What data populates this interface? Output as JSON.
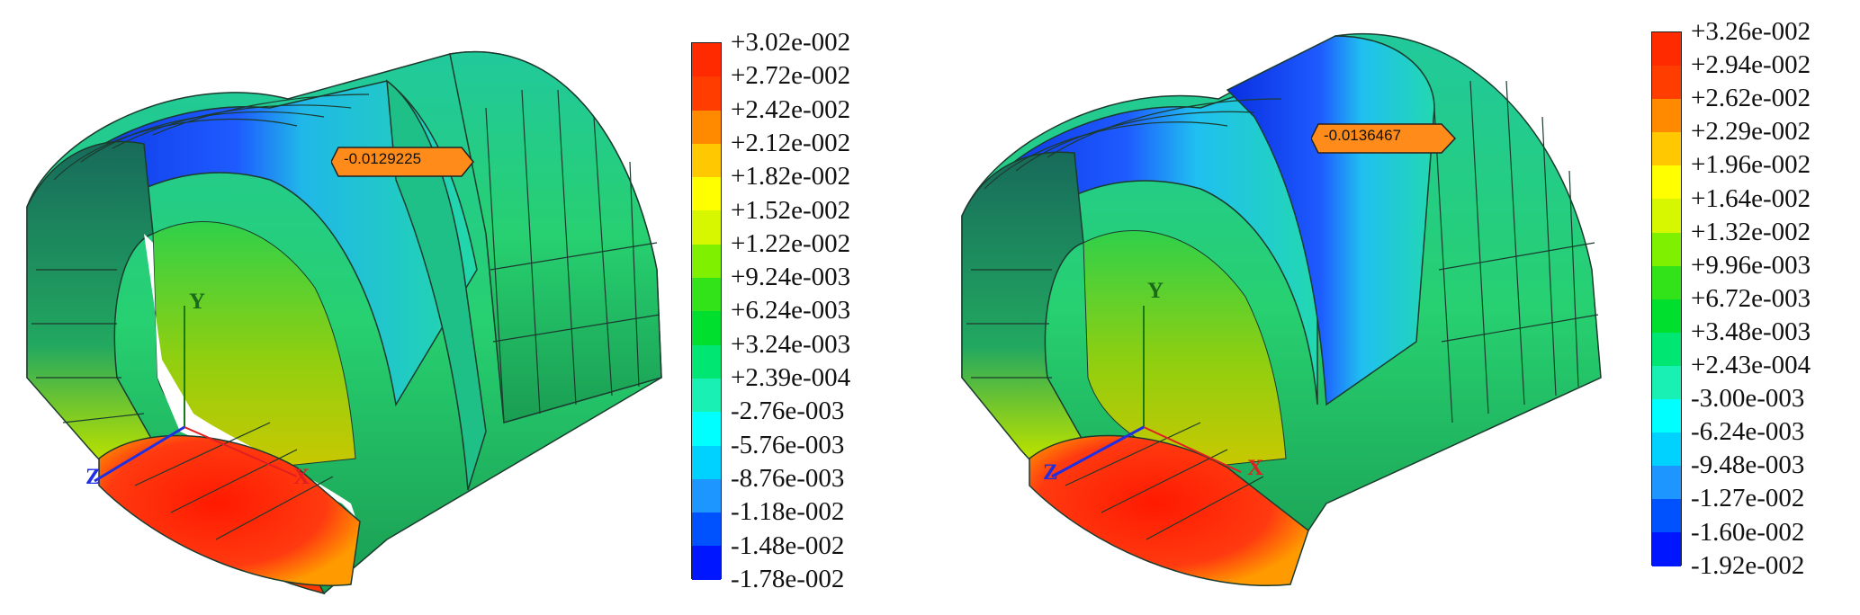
{
  "panels": [
    {
      "id": "left",
      "annotation": "-0.0129225",
      "axis_labels": {
        "y": "Y",
        "x": "X",
        "z": "Z"
      },
      "legend": {
        "labels": [
          "+3.02e-002",
          "+2.72e-002",
          "+2.42e-002",
          "+2.12e-002",
          "+1.82e-002",
          "+1.52e-002",
          "+1.22e-002",
          "+9.24e-003",
          "+6.24e-003",
          "+3.24e-003",
          "+2.39e-004",
          "-2.76e-003",
          "-5.76e-003",
          "-8.76e-003",
          "-1.18e-002",
          "-1.48e-002",
          "-1.78e-002"
        ],
        "colors": [
          "#ff2a00",
          "#ff3d00",
          "#ff8a00",
          "#ffc800",
          "#ffff00",
          "#d6f700",
          "#7ef000",
          "#33e31a",
          "#00df2e",
          "#00e673",
          "#19f0b3",
          "#00ffff",
          "#00d2ff",
          "#1e96ff",
          "#0052ff",
          "#0016ff"
        ]
      }
    },
    {
      "id": "right",
      "annotation": "-0.0136467",
      "axis_labels": {
        "y": "Y",
        "x": "X",
        "z": "Z"
      },
      "legend": {
        "labels": [
          "+3.26e-002",
          "+2.94e-002",
          "+2.62e-002",
          "+2.29e-002",
          "+1.96e-002",
          "+1.64e-002",
          "+1.32e-002",
          "+9.96e-003",
          "+6.72e-003",
          "+3.48e-003",
          "+2.43e-004",
          "-3.00e-003",
          "-6.24e-003",
          "-9.48e-003",
          "-1.27e-002",
          "-1.60e-002",
          "-1.92e-002"
        ],
        "colors": [
          "#ff2a00",
          "#ff3d00",
          "#ff8a00",
          "#ffc800",
          "#ffff00",
          "#d6f700",
          "#7ef000",
          "#33e31a",
          "#00df2e",
          "#00e673",
          "#19f0b3",
          "#00ffff",
          "#00d2ff",
          "#1e96ff",
          "#0052ff",
          "#0016ff"
        ]
      }
    }
  ]
}
